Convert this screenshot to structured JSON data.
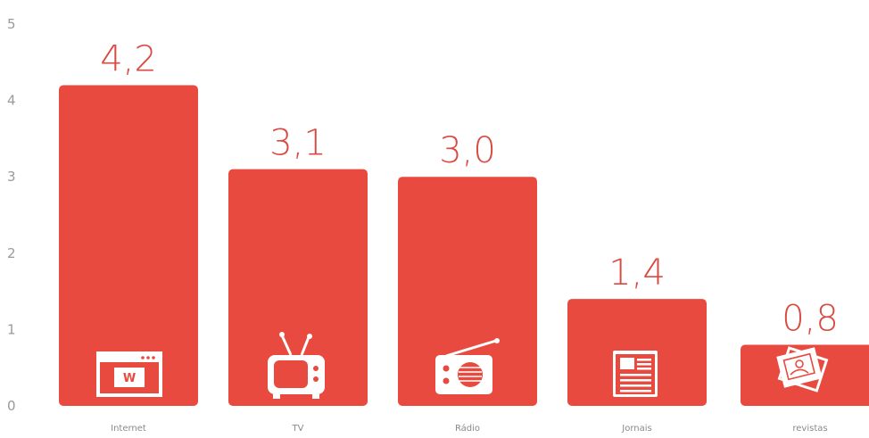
{
  "chart_data": {
    "type": "bar",
    "categories": [
      "Internet",
      "TV",
      "Rádio",
      "Jornais",
      "revistas"
    ],
    "values": [
      4.2,
      3.1,
      3.0,
      1.4,
      0.8
    ],
    "data_labels": [
      "4,2",
      "3,1",
      "3,0",
      "1,4",
      "0,8"
    ],
    "icons": [
      "browser-window-icon",
      "television-icon",
      "radio-icon",
      "newspaper-icon",
      "magazines-icon"
    ],
    "ylim": [
      0,
      5
    ],
    "yticks": [
      "0",
      "1",
      "2",
      "3",
      "4",
      "5"
    ],
    "grid": false,
    "legend": "none",
    "colors": {
      "bar": "#e84a3f",
      "label": "#d94a42",
      "icon": "#ffffff"
    }
  }
}
